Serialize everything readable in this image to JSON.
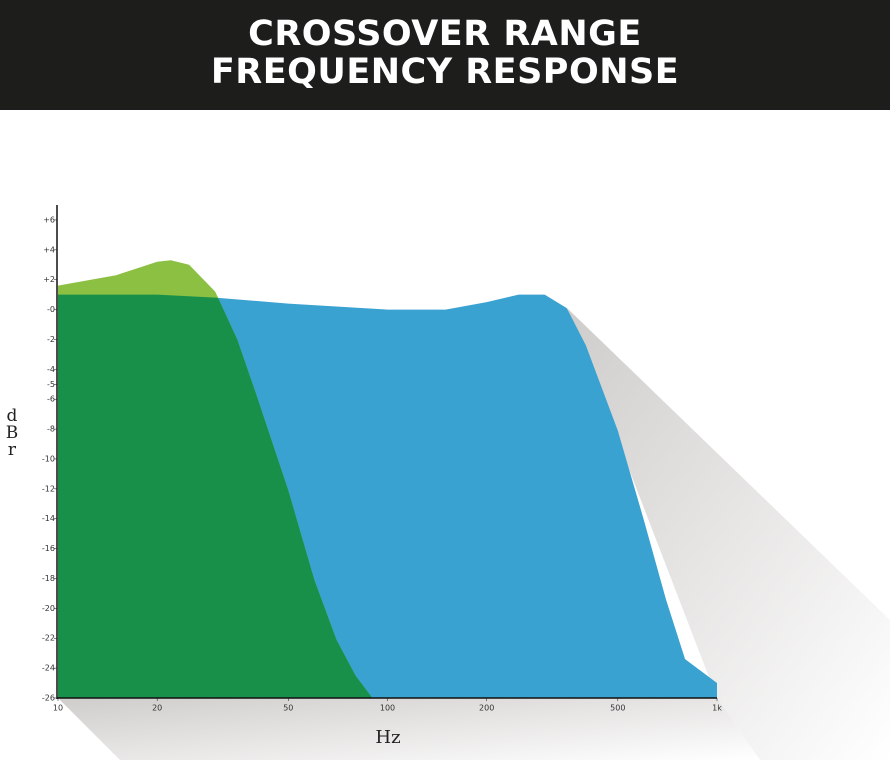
{
  "chart_data": {
    "type": "area",
    "title": [
      "CROSSOVER RANGE",
      "FREQUENCY RESPONSE"
    ],
    "x_label": "Hz",
    "y_label": "dBr",
    "x_scale": "log",
    "xlim": [
      10,
      1000
    ],
    "xticks": [
      10,
      20,
      50,
      100,
      200,
      500,
      {
        "value": 1000,
        "label": "1k"
      }
    ],
    "ylim": [
      -26,
      7
    ],
    "yticks": [
      {
        "value": 6,
        "label": "+6"
      },
      {
        "value": 4,
        "label": "+4"
      },
      {
        "value": 2,
        "label": "+2"
      },
      {
        "value": 0,
        "label": "-0"
      },
      -2,
      -4,
      -5,
      -6,
      -8,
      -10,
      -12,
      -14,
      -16,
      -18,
      -20,
      -22,
      -24,
      -26
    ],
    "series": [
      {
        "color": "#3aa2d1",
        "x": [
          10,
          20,
          30,
          50,
          100,
          150,
          200,
          250,
          300,
          350,
          400,
          500,
          600,
          700,
          800,
          1000
        ],
        "values": [
          1.0,
          1.0,
          0.8,
          0.4,
          0,
          0,
          0.5,
          1.0,
          1.0,
          0.1,
          -2.4,
          -8.1,
          -14.1,
          -19.4,
          -23.4,
          -25.0
        ]
      },
      {
        "color": "#8bc043",
        "x": [
          10,
          15,
          20,
          22,
          25,
          30,
          35,
          40,
          50,
          60,
          70,
          80,
          90
        ],
        "values": [
          1.6,
          2.3,
          3.2,
          3.3,
          3.0,
          1.2,
          -2.0,
          -5.7,
          -12.1,
          -18.1,
          -22.1,
          -24.5,
          -26
        ]
      }
    ]
  }
}
